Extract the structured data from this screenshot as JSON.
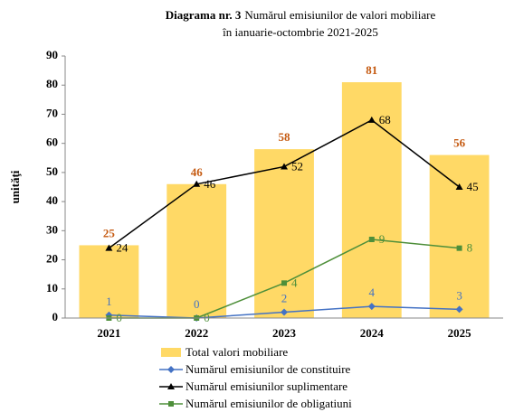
{
  "chart_data": {
    "type": "bar-line",
    "title_label": "Diagrama nr. 3",
    "title": [
      "Numărul emisiunilor de valori mobiliare",
      "în ianuarie-octombrie 2021-2025"
    ],
    "y_label": "unităţi",
    "categories": [
      "2021",
      "2022",
      "2023",
      "2024",
      "2025"
    ],
    "ylim": [
      0,
      90
    ],
    "yticks": [
      0,
      10,
      20,
      30,
      40,
      50,
      60,
      70,
      80,
      90
    ],
    "y2lim": [
      0,
      30
    ],
    "grid": false,
    "legend": "bottom",
    "series": [
      {
        "name": "Total valori mobiliare",
        "type": "bar",
        "color": "#ffd966",
        "label_color": "#c55a11",
        "values": [
          25,
          46,
          58,
          81,
          56
        ]
      },
      {
        "name": "Numărul emisiunilor de constituire",
        "type": "line",
        "marker": "diamond",
        "color": "#4472c4",
        "values": [
          1,
          0,
          2,
          4,
          3
        ]
      },
      {
        "name": "Numărul emisiunilor suplimentare",
        "type": "line",
        "marker": "triangle",
        "color": "#000000",
        "values": [
          24,
          46,
          52,
          68,
          45
        ]
      },
      {
        "name": "Numărul emisiunilor de obligatiuni",
        "type": "line",
        "marker": "square",
        "color": "#4e8f3a",
        "axis": "y2",
        "values": [
          0,
          0,
          4,
          9,
          8
        ]
      }
    ]
  }
}
